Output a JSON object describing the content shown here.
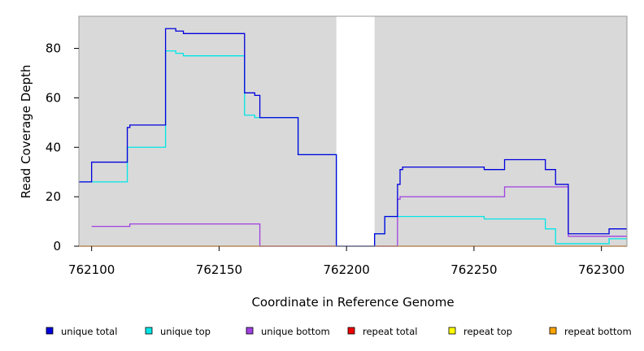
{
  "chart_data": {
    "type": "line",
    "step": true,
    "xlabel": "Coordinate in Reference Genome",
    "ylabel": "Read Coverage Depth",
    "xlim": [
      762095,
      762310
    ],
    "ylim": [
      0,
      93
    ],
    "x_ticks": [
      762100,
      762150,
      762200,
      762250,
      762300
    ],
    "y_ticks": [
      0,
      20,
      40,
      60,
      80
    ],
    "shaded_regions": [
      [
        762095,
        762196
      ],
      [
        762211,
        762310
      ]
    ],
    "shade_color": "#d9d9d9",
    "series": [
      {
        "name": "unique total",
        "color": "#0000dd",
        "points": [
          [
            762095,
            26
          ],
          [
            762100,
            34
          ],
          [
            762114,
            48
          ],
          [
            762115,
            49
          ],
          [
            762129,
            88
          ],
          [
            762133,
            87
          ],
          [
            762136,
            86
          ],
          [
            762160,
            62
          ],
          [
            762164,
            61
          ],
          [
            762166,
            52
          ],
          [
            762181,
            37
          ],
          [
            762196,
            0
          ],
          [
            762211,
            5
          ],
          [
            762215,
            12
          ],
          [
            762220,
            25
          ],
          [
            762221,
            31
          ],
          [
            762222,
            32
          ],
          [
            762254,
            31
          ],
          [
            762262,
            35
          ],
          [
            762278,
            31
          ],
          [
            762282,
            25
          ],
          [
            762287,
            5
          ],
          [
            762303,
            7
          ],
          [
            762310,
            7
          ]
        ]
      },
      {
        "name": "unique top",
        "color": "#00e6e6",
        "points": [
          [
            762095,
            26
          ],
          [
            762114,
            40
          ],
          [
            762129,
            79
          ],
          [
            762133,
            78
          ],
          [
            762136,
            77
          ],
          [
            762160,
            53
          ],
          [
            762164,
            52
          ],
          [
            762181,
            37
          ],
          [
            762196,
            0
          ],
          [
            762211,
            5
          ],
          [
            762215,
            12
          ],
          [
            762254,
            11
          ],
          [
            762278,
            7
          ],
          [
            762282,
            1
          ],
          [
            762303,
            3
          ],
          [
            762310,
            3
          ]
        ]
      },
      {
        "name": "unique bottom",
        "color": "#a040e0",
        "points": [
          [
            762100,
            8
          ],
          [
            762115,
            9
          ],
          [
            762166,
            0
          ],
          [
            762220,
            19
          ],
          [
            762221,
            20
          ],
          [
            762262,
            24
          ],
          [
            762287,
            4
          ],
          [
            762310,
            4
          ]
        ]
      },
      {
        "name": "repeat total",
        "color": "#ee0000",
        "points": [
          [
            762095,
            0
          ],
          [
            762310,
            0
          ]
        ]
      },
      {
        "name": "repeat top",
        "color": "#ffff00",
        "points": [
          [
            762095,
            0
          ],
          [
            762310,
            0
          ]
        ]
      },
      {
        "name": "repeat bottom",
        "color": "#ffa500",
        "points": [
          [
            762095,
            0
          ],
          [
            762310,
            0
          ]
        ]
      }
    ],
    "legend": {
      "position": "bottom",
      "entries": [
        "unique total",
        "unique top",
        "unique bottom",
        "repeat total",
        "repeat top",
        "repeat bottom"
      ]
    }
  }
}
